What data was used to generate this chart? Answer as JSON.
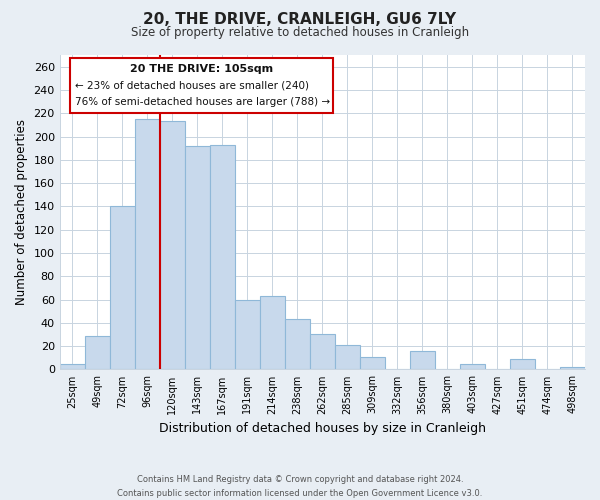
{
  "title": "20, THE DRIVE, CRANLEIGH, GU6 7LY",
  "subtitle": "Size of property relative to detached houses in Cranleigh",
  "xlabel": "Distribution of detached houses by size in Cranleigh",
  "ylabel": "Number of detached properties",
  "bar_labels": [
    "25sqm",
    "49sqm",
    "72sqm",
    "96sqm",
    "120sqm",
    "143sqm",
    "167sqm",
    "191sqm",
    "214sqm",
    "238sqm",
    "262sqm",
    "285sqm",
    "309sqm",
    "332sqm",
    "356sqm",
    "380sqm",
    "403sqm",
    "427sqm",
    "451sqm",
    "474sqm",
    "498sqm"
  ],
  "bar_values": [
    5,
    29,
    140,
    215,
    213,
    192,
    193,
    60,
    63,
    43,
    30,
    21,
    11,
    0,
    16,
    0,
    5,
    0,
    9,
    0,
    2
  ],
  "bar_color": "#c8d9ec",
  "bar_edge_color": "#8fb8d8",
  "ylim": [
    0,
    270
  ],
  "yticks": [
    0,
    20,
    40,
    60,
    80,
    100,
    120,
    140,
    160,
    180,
    200,
    220,
    240,
    260
  ],
  "vline_x": 3.5,
  "vline_color": "#cc0000",
  "annotation_title": "20 THE DRIVE: 105sqm",
  "annotation_line1": "← 23% of detached houses are smaller (240)",
  "annotation_line2": "76% of semi-detached houses are larger (788) →",
  "footer_line1": "Contains HM Land Registry data © Crown copyright and database right 2024.",
  "footer_line2": "Contains public sector information licensed under the Open Government Licence v3.0.",
  "background_color": "#e8eef4",
  "plot_bg_color": "#ffffff",
  "grid_color": "#c8d4e0"
}
